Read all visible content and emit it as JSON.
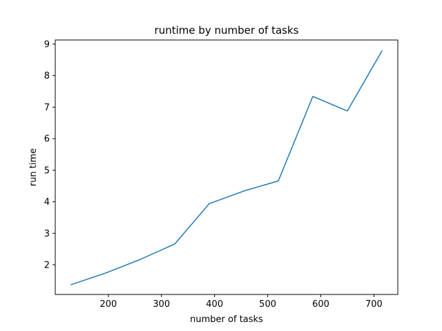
{
  "chart_data": {
    "type": "line",
    "title": "runtime by number of tasks",
    "xlabel": "number of tasks",
    "ylabel": "run time",
    "xlim": [
      100,
      745
    ],
    "ylim": [
      1.06,
      9.13
    ],
    "xticks": [
      200,
      300,
      400,
      500,
      600,
      700
    ],
    "yticks": [
      2,
      3,
      4,
      5,
      6,
      7,
      8,
      9
    ],
    "grid": false,
    "legend": "none",
    "series": [
      {
        "color": "#1f77b4",
        "x": [
          130,
          195,
          260,
          325,
          390,
          455,
          520,
          585,
          650,
          715
        ],
        "y": [
          1.37,
          1.74,
          2.17,
          2.66,
          3.94,
          4.34,
          4.66,
          7.34,
          6.88,
          8.78
        ]
      }
    ]
  }
}
